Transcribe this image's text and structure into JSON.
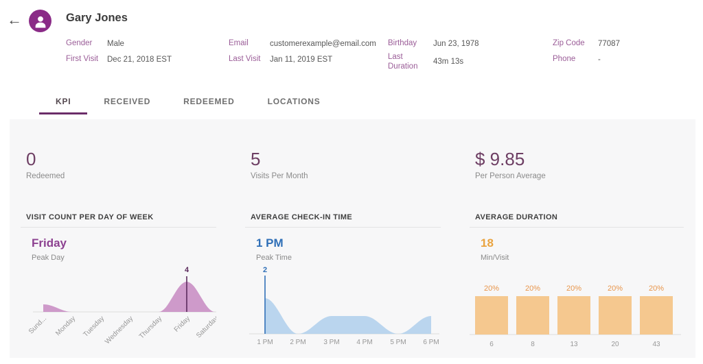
{
  "header": {
    "back_icon": "←",
    "name": "Gary Jones",
    "fields": [
      {
        "label": "Gender",
        "value": "Male"
      },
      {
        "label": "First Visit",
        "value": "Dec 21, 2018 EST"
      },
      {
        "label": "Email",
        "value": "customerexample@email.com"
      },
      {
        "label": "Last Visit",
        "value": "Jan 11, 2019 EST"
      },
      {
        "label": "Birthday",
        "value": "Jun 23, 1978"
      },
      {
        "label": "Last Duration",
        "value": "43m 13s"
      },
      {
        "label": "Zip Code",
        "value": "77087"
      },
      {
        "label": "Phone",
        "value": "-"
      }
    ]
  },
  "tabs": [
    {
      "label": "KPI",
      "active": true
    },
    {
      "label": "RECEIVED",
      "active": false
    },
    {
      "label": "REDEEMED",
      "active": false
    },
    {
      "label": "LOCATIONS",
      "active": false
    }
  ],
  "kpis": [
    {
      "value": "0",
      "label": "Redeemed"
    },
    {
      "value": "5",
      "label": "Visits Per Month"
    },
    {
      "value": "$ 9.85",
      "label": "Per Person Average"
    }
  ],
  "chart_data": [
    {
      "type": "area",
      "title": "VISIT COUNT PER DAY OF WEEK",
      "peak_value_label": "Friday",
      "peak_sublabel": "Peak Day",
      "categories": [
        "Sund...",
        "Monday",
        "Tuesday",
        "Wednesday",
        "Thursday",
        "Friday",
        "Saturday"
      ],
      "values": [
        1,
        0,
        0,
        0,
        0,
        4,
        0
      ],
      "peak_index": 5,
      "peak_annotation": "4",
      "ylim": [
        0,
        4
      ],
      "fill_color": "#C98FC4",
      "accent_color": "#5B2A5C",
      "value_color": "#8C4190",
      "rotated_labels": true
    },
    {
      "type": "area",
      "title": "AVERAGE CHECK-IN TIME",
      "peak_value_label": "1 PM",
      "peak_sublabel": "Peak Time",
      "categories": [
        "1 PM",
        "2 PM",
        "3 PM",
        "4 PM",
        "5 PM",
        "6 PM"
      ],
      "values": [
        2,
        0,
        1,
        1,
        0,
        1
      ],
      "peak_index": 0,
      "peak_annotation": "2",
      "ylim": [
        0,
        2
      ],
      "fill_color": "#B3D0EC",
      "accent_color": "#2F6FB7",
      "value_color": "#2F6FB7",
      "rotated_labels": false
    },
    {
      "type": "bar",
      "title": "AVERAGE DURATION",
      "peak_value_label": "18",
      "peak_sublabel": "Min/Visit",
      "categories": [
        "6",
        "8",
        "13",
        "20",
        "43"
      ],
      "values": [
        20,
        20,
        20,
        20,
        20
      ],
      "value_labels": [
        "20%",
        "20%",
        "20%",
        "20%",
        "20%"
      ],
      "ylim": [
        0,
        20
      ],
      "fill_color": "#F5C88F",
      "accent_color": "#E8954A",
      "value_color": "#E9A33F"
    }
  ],
  "theme": {
    "brand_purple": "#8A2B87",
    "field_label_purple": "#9A5C97",
    "stat_purple": "#6E3F64",
    "tab_underline": "#6B2D69",
    "panel_bg": "#F7F7F8",
    "axis_gray": "#979797",
    "baseline_gray": "#DCDCDC"
  }
}
